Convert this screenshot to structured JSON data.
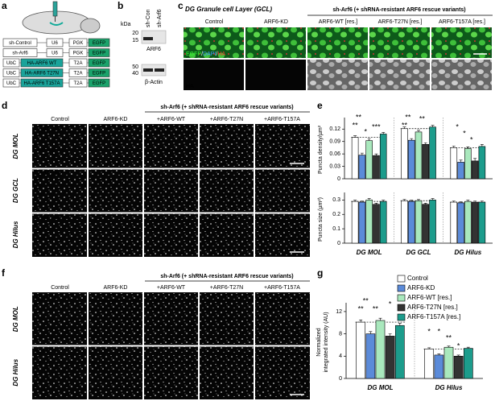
{
  "figure": {
    "letters": [
      "a",
      "b",
      "c",
      "d",
      "e",
      "f",
      "g"
    ],
    "a": {
      "constructs": [
        [
          "sh-Control",
          "U6",
          "PGK",
          "EGFP"
        ],
        [
          "sh-Arf6",
          "U6",
          "PGK",
          "EGFP"
        ],
        [
          "UbC",
          "HA-ARF6 WT",
          "T2A",
          "EGFP"
        ],
        [
          "UbC",
          "HA-ARF6 T27N",
          "T2A",
          "EGFP"
        ],
        [
          "UbC",
          "HA-ARF6 T157A",
          "T2A",
          "EGFP"
        ]
      ]
    },
    "b": {
      "unit": "kDa",
      "lanes": [
        "sh-Con",
        "sh-Arf6"
      ],
      "markers_top": [
        "20",
        "15"
      ],
      "markers_bottom": [
        "50",
        "40"
      ],
      "bands": [
        "ARF6",
        "β-Actin"
      ]
    },
    "c": {
      "title": "DG Granule cell Layer (GCL)",
      "header": "sh-Arf6 (+ shRNA-resistant ARF6 rescue variants)",
      "columns": [
        "Control",
        "ARF6-KD",
        "ARF6-WT [res.]",
        "ARF6-T27N [res.]",
        "ARF6-T157A [res.]"
      ],
      "stain": [
        "EGFP",
        "/",
        "DAPI",
        "/",
        "HA"
      ],
      "row2_label": "HA"
    },
    "d": {
      "header": "sh-Arf6 (+ shRNA-resistant ARF6 rescue variants)",
      "columns": [
        "Control",
        "ARF6-KD",
        "+ARF6-WT",
        "+ARF6-T27N",
        "+ARF6-T157A"
      ],
      "rows": [
        "DG MOL",
        "DG GCL",
        "DG Hilus"
      ],
      "stain": {
        "main": "GABA",
        "sub": "A",
        "rest": "Rγ2"
      }
    },
    "f": {
      "header": "sh-Arf6 (+ shRNA-resistant ARF6 rescue variants)",
      "columns": [
        "Control",
        "ARF6-KD",
        "+ARF6-WT",
        "+ARF6-T27N",
        "+ARF6-T157A"
      ],
      "rows": [
        "DG MOL",
        "DG Hilus"
      ],
      "stain": "VGLUT1"
    }
  },
  "chart_data": [
    {
      "type": "bar",
      "y_label": [
        "Puncta density/µm²"
      ],
      "ylim": [
        0,
        0.14
      ],
      "yticks": [
        0,
        0.03,
        0.06,
        0.09,
        0.12
      ],
      "series": [
        {
          "color": "#ffffff",
          "values": [
            0.1,
            0.121,
            0.075
          ],
          "errors": [
            0.004,
            0.004,
            0.004
          ]
        },
        {
          "color": "#5b8bd9",
          "values": [
            0.057,
            0.093,
            0.04
          ],
          "errors": [
            0.005,
            0.004,
            0.005
          ]
        },
        {
          "color": "#a9e8bd",
          "values": [
            0.092,
            0.113,
            0.073
          ],
          "errors": [
            0.005,
            0.004,
            0.004
          ]
        },
        {
          "color": "#333333",
          "values": [
            0.056,
            0.083,
            0.043
          ],
          "errors": [
            0.004,
            0.004,
            0.006
          ]
        },
        {
          "color": "#1c9c8c",
          "values": [
            0.108,
            0.125,
            0.078
          ],
          "errors": [
            0.004,
            0.004,
            0.005
          ]
        }
      ],
      "annotations": [
        "**",
        "**",
        "*",
        "***",
        "**",
        "**",
        "**",
        "*",
        "*",
        "*"
      ]
    },
    {
      "type": "bar",
      "y_label": [
        "Puncta size (µm²)"
      ],
      "categories": [
        "DG MOL",
        "DG GCL",
        "DG Hilus"
      ],
      "ylim": [
        0,
        0.33
      ],
      "yticks": [
        0,
        0.1,
        0.2,
        0.3
      ],
      "series": [
        {
          "color": "#ffffff",
          "values": [
            0.29,
            0.295,
            0.285
          ],
          "errors": [
            0.008,
            0.008,
            0.008
          ]
        },
        {
          "color": "#5b8bd9",
          "values": [
            0.285,
            0.29,
            0.28
          ],
          "errors": [
            0.008,
            0.008,
            0.008
          ]
        },
        {
          "color": "#a9e8bd",
          "values": [
            0.3,
            0.295,
            0.29
          ],
          "errors": [
            0.01,
            0.008,
            0.008
          ]
        },
        {
          "color": "#333333",
          "values": [
            0.27,
            0.27,
            0.285
          ],
          "errors": [
            0.008,
            0.008,
            0.008
          ]
        },
        {
          "color": "#1c9c8c",
          "values": [
            0.29,
            0.3,
            0.285
          ],
          "errors": [
            0.008,
            0.01,
            0.008
          ]
        }
      ]
    },
    {
      "type": "bar",
      "y_label": [
        "Normalized",
        "integrated intensity (AU)"
      ],
      "categories": [
        "DG MOL",
        "DG Hilus"
      ],
      "ylim": [
        0,
        13
      ],
      "yticks": [
        0,
        4,
        8,
        12
      ],
      "legend": "upper right",
      "series": [
        {
          "name": "Control",
          "color": "#ffffff",
          "values": [
            10.1,
            5.3
          ],
          "errors": [
            0.4,
            0.2
          ]
        },
        {
          "name": "ARF6-KD",
          "color": "#5b8bd9",
          "values": [
            8,
            4.2
          ],
          "errors": [
            0.4,
            0.2
          ]
        },
        {
          "name": "ARF6-WT [res.]",
          "color": "#a9e8bd",
          "values": [
            10.4,
            5.6
          ],
          "errors": [
            0.4,
            0.2
          ]
        },
        {
          "name": "ARF6-T27N [res.]",
          "color": "#333333",
          "values": [
            7.6,
            4
          ],
          "errors": [
            0.4,
            0.2
          ]
        },
        {
          "name": "ARF6-T157A [res.]",
          "color": "#1c9c8c",
          "values": [
            9.5,
            5.4
          ],
          "errors": [
            0.4,
            0.2
          ]
        }
      ],
      "annotations": [
        "**",
        "**",
        "**",
        "*",
        "*",
        "*",
        "**",
        "*"
      ]
    }
  ]
}
